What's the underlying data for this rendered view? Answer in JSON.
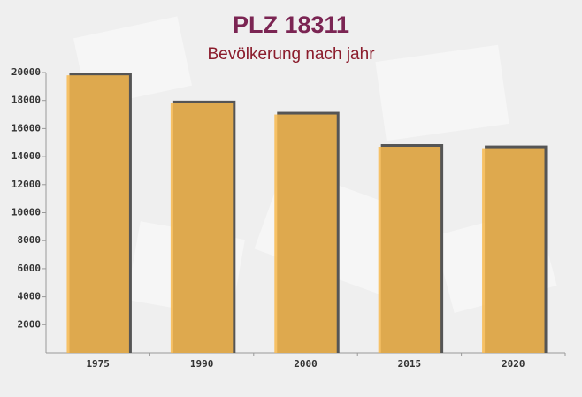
{
  "chart_data": {
    "type": "bar",
    "title": "PLZ 18311",
    "subtitle": "Bevölkerung nach jahr",
    "categories": [
      "1975",
      "1990",
      "2000",
      "2015",
      "2020"
    ],
    "values": [
      19800,
      17800,
      17000,
      14700,
      14600
    ],
    "color": "#f7b84e",
    "ylim": [
      0,
      20000
    ],
    "yticks": [
      2000,
      4000,
      6000,
      8000,
      10000,
      12000,
      14000,
      16000,
      18000,
      20000
    ],
    "grid": false
  }
}
